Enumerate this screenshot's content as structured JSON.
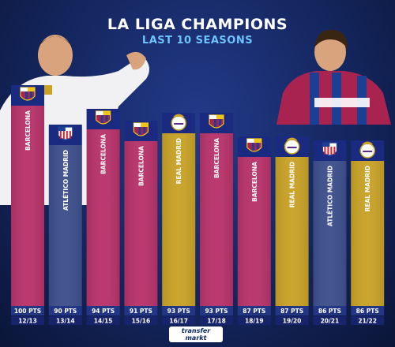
{
  "header": {
    "title": "LA LIGA CHAMPIONS",
    "subtitle": "LAST 10 SEASONS"
  },
  "brand": {
    "line1": "transfer",
    "line2": "markt"
  },
  "colors": {
    "barcelona": "#b8336a",
    "atletico": "#3e4f8c",
    "real_madrid": "#c9a227",
    "points_strip": "#233585",
    "season_strip": "#17236b"
  },
  "chart_data": {
    "type": "bar",
    "categories": [
      "12/13",
      "13/14",
      "14/15",
      "15/16",
      "16/17",
      "17/18",
      "18/19",
      "19/20",
      "20/21",
      "21/22"
    ],
    "series": [
      {
        "values": [
          100,
          90,
          94,
          91,
          93,
          93,
          87,
          87,
          86,
          86
        ]
      }
    ],
    "champions": [
      "BARCELONA",
      "ATLÉTICO MADRID",
      "BARCELONA",
      "BARCELONA",
      "REAL MADRID",
      "BARCELONA",
      "BARCELONA",
      "REAL MADRID",
      "ATLÉTICO MADRID",
      "REAL MADRID"
    ],
    "club_keys": [
      "barcelona",
      "atletico",
      "barcelona",
      "barcelona",
      "real_madrid",
      "barcelona",
      "barcelona",
      "real_madrid",
      "atletico",
      "real_madrid"
    ],
    "point_labels": [
      "100 PTS",
      "90 PTS",
      "94 PTS",
      "91 PTS",
      "93 PTS",
      "93 PTS",
      "87 PTS",
      "87 PTS",
      "86 PTS",
      "86 PTS"
    ],
    "crest_icons": [
      "barcelona-crest-icon",
      "atletico-crest-icon",
      "barcelona-crest-icon",
      "barcelona-crest-icon",
      "real-madrid-crest-icon",
      "barcelona-crest-icon",
      "barcelona-crest-icon",
      "real-madrid-crest-icon",
      "atletico-crest-icon",
      "real-madrid-crest-icon"
    ],
    "ylim": [
      0,
      100
    ],
    "grid": false,
    "legend": "none"
  }
}
